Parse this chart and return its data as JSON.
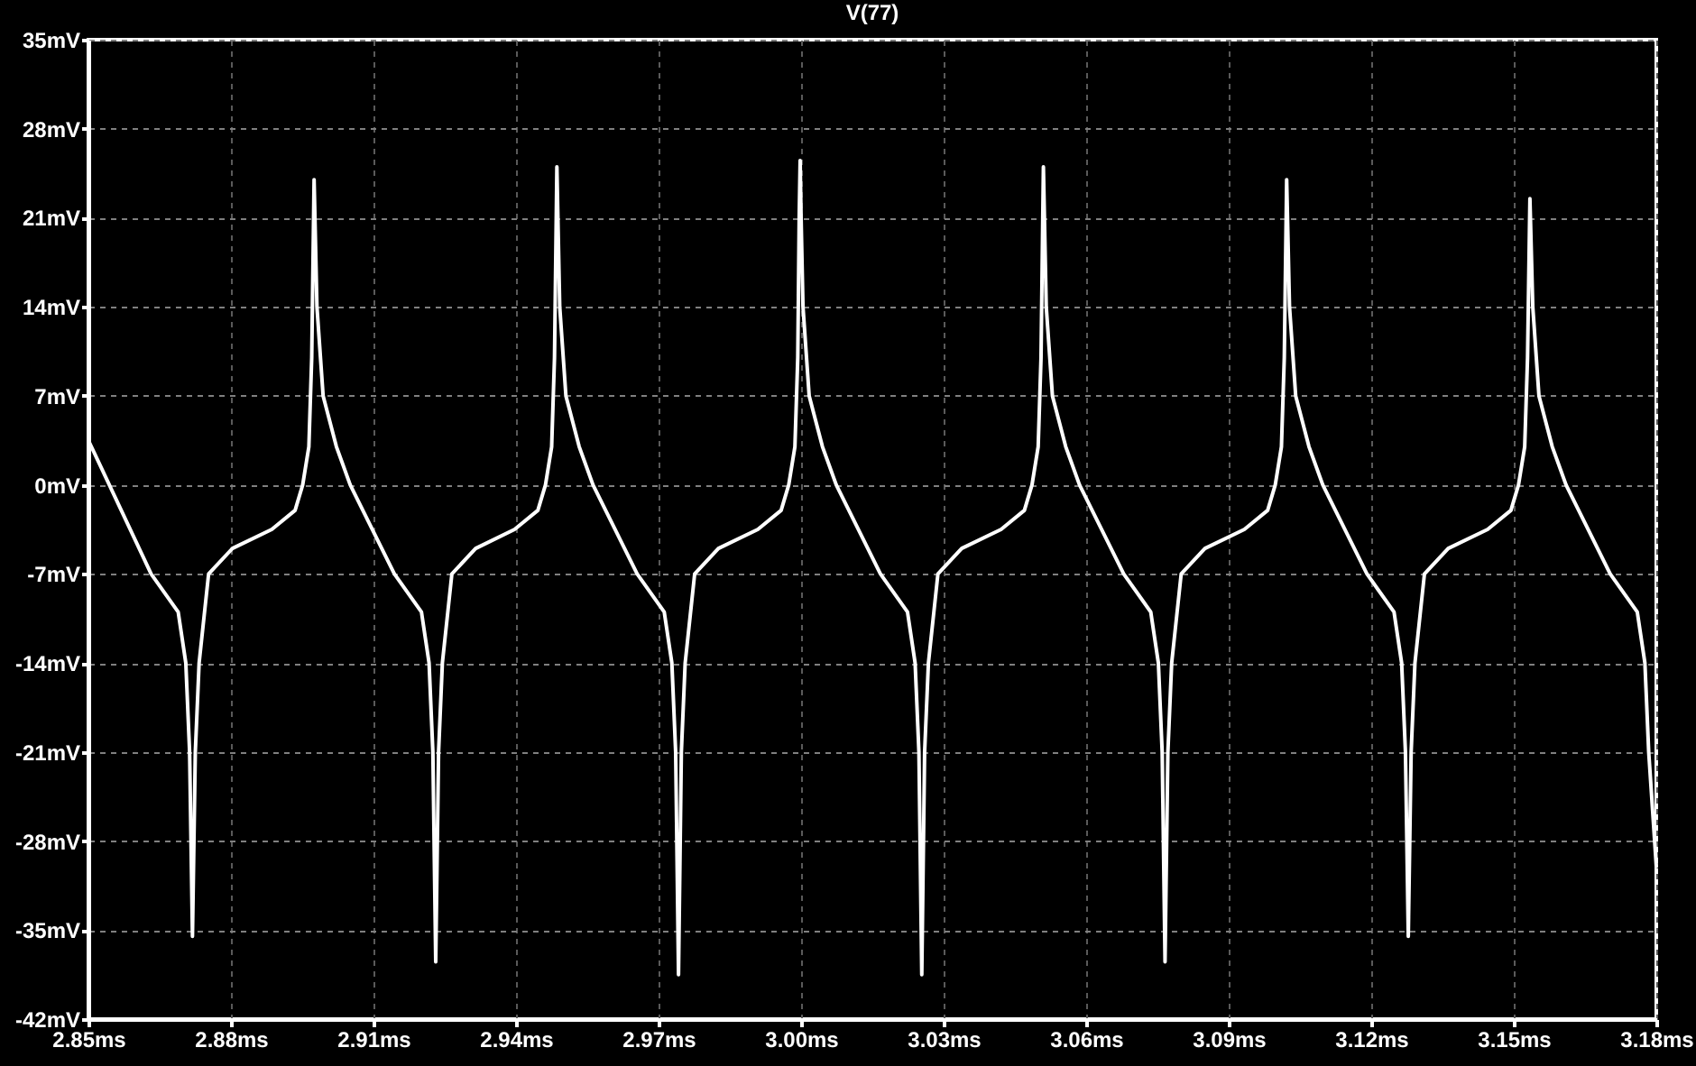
{
  "chart_data": {
    "type": "line",
    "title": "V(77)",
    "x": [
      2.85,
      2.8632,
      2.8689,
      2.8705,
      2.8713,
      2.8719,
      2.8725,
      2.8733,
      2.8753,
      2.8803,
      2.8886,
      2.8935,
      2.8951,
      2.8964,
      2.897,
      2.8975,
      2.8981,
      2.8994,
      2.9022,
      2.9051,
      2.9144,
      2.9201,
      2.9217,
      2.9225,
      2.9231,
      2.9237,
      2.9245,
      2.9265,
      2.9315,
      2.9397,
      2.9446,
      2.9462,
      2.9475,
      2.9481,
      2.9486,
      2.9492,
      2.9505,
      2.9533,
      2.9562,
      2.9655,
      2.9712,
      2.9728,
      2.9736,
      2.9742,
      2.9748,
      2.9756,
      2.9776,
      2.9826,
      2.9909,
      2.9958,
      2.9974,
      2.9987,
      2.9993,
      2.9996,
      2.9998,
      3.0,
      3.0004,
      3.0017,
      3.0045,
      3.0074,
      3.0167,
      3.0224,
      3.024,
      3.0248,
      3.0254,
      3.026,
      3.0268,
      3.0288,
      3.0338,
      3.0421,
      3.047,
      3.0486,
      3.0499,
      3.0505,
      3.051,
      3.0516,
      3.0529,
      3.0557,
      3.0586,
      3.0679,
      3.0736,
      3.0752,
      3.076,
      3.0766,
      3.0772,
      3.078,
      3.08,
      3.085,
      3.0933,
      3.0982,
      3.0998,
      3.1011,
      3.1017,
      3.1022,
      3.1028,
      3.1041,
      3.1069,
      3.1098,
      3.1191,
      3.1248,
      3.1264,
      3.1272,
      3.1278,
      3.1284,
      3.1292,
      3.1312,
      3.1362,
      3.1445,
      3.1494,
      3.151,
      3.1523,
      3.1529,
      3.1534,
      3.154,
      3.1553,
      3.1581,
      3.161,
      3.1703,
      3.176,
      3.1776,
      3.1784,
      3.18
    ],
    "series": [
      {
        "color": "#ffffff",
        "values": [
          3.5,
          -7,
          -10,
          -14,
          -21,
          -35.5,
          -21,
          -14,
          -7,
          -5,
          -3.5,
          -2,
          0,
          3,
          10,
          24,
          14,
          7,
          3,
          0,
          -7,
          -10,
          -14,
          -21,
          -37.5,
          -21,
          -14,
          -7,
          -5,
          -3.5,
          -2,
          0,
          3,
          10,
          25,
          14,
          7,
          3,
          0,
          -7,
          -10,
          -14,
          -21,
          -38.5,
          -21,
          -14,
          -7,
          -5,
          -3.5,
          -2,
          0,
          3,
          10,
          21,
          25.5,
          21,
          14,
          7,
          3,
          0,
          -7,
          -10,
          -14,
          -21,
          -38.5,
          -21,
          -14,
          -7,
          -5,
          -3.5,
          -2,
          0,
          3,
          10,
          25,
          14,
          7,
          3,
          0,
          -7,
          -10,
          -14,
          -21,
          -37.5,
          -21,
          -14,
          -7,
          -5,
          -3.5,
          -2,
          0,
          3,
          10,
          24,
          14,
          7,
          3,
          0,
          -7,
          -10,
          -14,
          -21,
          -35.5,
          -21,
          -14,
          -7,
          -5,
          -3.5,
          -2,
          0,
          3,
          10,
          22.5,
          14,
          7,
          3,
          0,
          -7,
          -10,
          -14,
          -21,
          -30
        ]
      }
    ],
    "xlim": [
      2.85,
      3.18
    ],
    "xticks": [
      {
        "value": 2.85,
        "label": "2.85ms"
      },
      {
        "value": 2.88,
        "label": "2.88ms"
      },
      {
        "value": 2.91,
        "label": "2.91ms"
      },
      {
        "value": 2.94,
        "label": "2.94ms"
      },
      {
        "value": 2.97,
        "label": "2.97ms"
      },
      {
        "value": 3.0,
        "label": "3.00ms"
      },
      {
        "value": 3.03,
        "label": "3.03ms"
      },
      {
        "value": 3.06,
        "label": "3.06ms"
      },
      {
        "value": 3.09,
        "label": "3.09ms"
      },
      {
        "value": 3.12,
        "label": "3.12ms"
      },
      {
        "value": 3.15,
        "label": "3.15ms"
      },
      {
        "value": 3.18,
        "label": "3.18ms"
      }
    ],
    "ylim": [
      -42,
      35
    ],
    "yticks": [
      {
        "value": -42,
        "label": "-42mV"
      },
      {
        "value": -35,
        "label": "-35mV"
      },
      {
        "value": -28,
        "label": "-28mV"
      },
      {
        "value": -21,
        "label": "-21mV"
      },
      {
        "value": -14,
        "label": "-14mV"
      },
      {
        "value": -7,
        "label": "-7mV"
      },
      {
        "value": 0,
        "label": "0mV"
      },
      {
        "value": 7,
        "label": "7mV"
      },
      {
        "value": 14,
        "label": "14mV"
      },
      {
        "value": 21,
        "label": "21mV"
      },
      {
        "value": 28,
        "label": "28mV"
      },
      {
        "value": 35,
        "label": "35mV"
      }
    ],
    "grid": true,
    "line_style": "solid",
    "marker": "none"
  }
}
